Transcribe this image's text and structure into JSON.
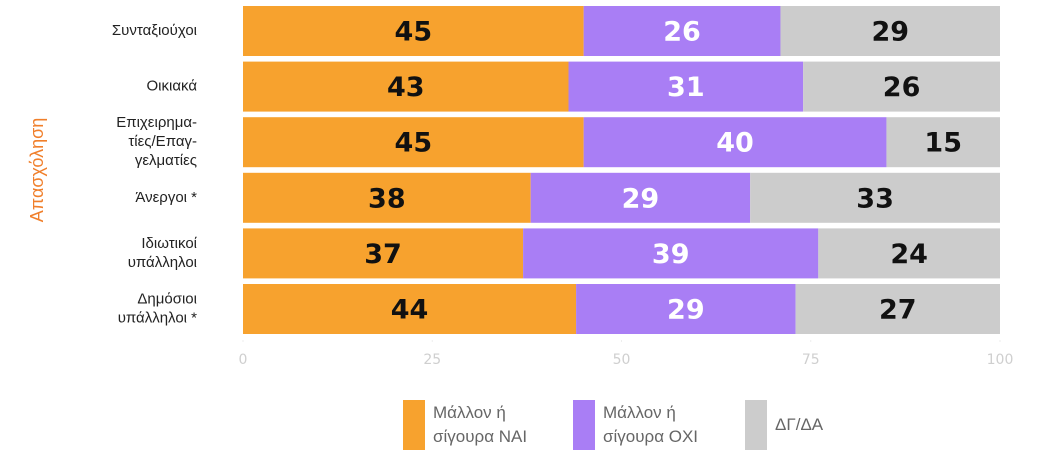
{
  "chart_data": {
    "type": "stacked_bar_horizontal",
    "y_label": "Απασχόληση",
    "categories": [
      [
        "Συνταξιούχοι"
      ],
      [
        "Οικιακά"
      ],
      [
        "Επιχειρημα-",
        "τίες/Επαγ-",
        "γελματίες"
      ],
      [
        "Άνεργοι *"
      ],
      [
        "Ιδιωτικοί",
        "υπάλληλοι"
      ],
      [
        "Δημόσιοι",
        "υπάλληλοι *"
      ]
    ],
    "series": [
      {
        "name": "Μάλλον ή σίγουρα ΝΑΙ",
        "color": "#f7a22e",
        "label_color": "#111111",
        "values": [
          45,
          43,
          45,
          38,
          37,
          44
        ]
      },
      {
        "name": "Μάλλον ή σίγουρα ΟΧΙ",
        "color": "#a97ef5",
        "label_color": "#ffffff",
        "values": [
          26,
          31,
          40,
          29,
          39,
          29
        ]
      },
      {
        "name": "ΔΓ/ΔΑ",
        "color": "#cccccc",
        "label_color": "#111111",
        "values": [
          29,
          26,
          15,
          33,
          24,
          27
        ]
      }
    ],
    "xlim": [
      0,
      100
    ],
    "xticks": [
      0,
      25,
      50,
      75,
      100
    ],
    "legend": "bottom"
  }
}
